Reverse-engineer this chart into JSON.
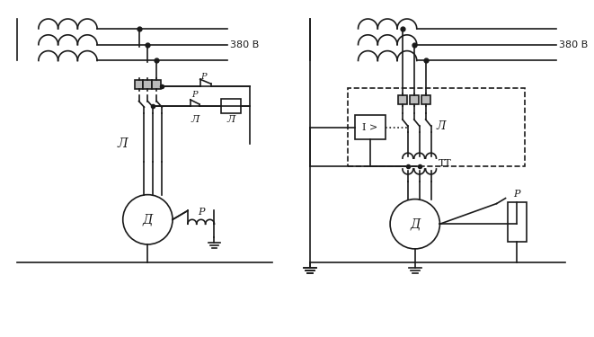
{
  "bg_color": "#ffffff",
  "line_color": "#1a1a1a",
  "fig_width": 6.61,
  "fig_height": 3.75,
  "label_380V_1": "380 В",
  "label_380V_2": "380 В",
  "label_D1": "Д",
  "label_D2": "Д",
  "label_P_top": "Р",
  "label_P_relay": "Р",
  "label_L_main": "Л",
  "label_L_ctrl1": "Л",
  "label_L_ctrl2": "Л",
  "label_L_right": "Л",
  "label_TT": "ТТ",
  "label_I": "I >"
}
